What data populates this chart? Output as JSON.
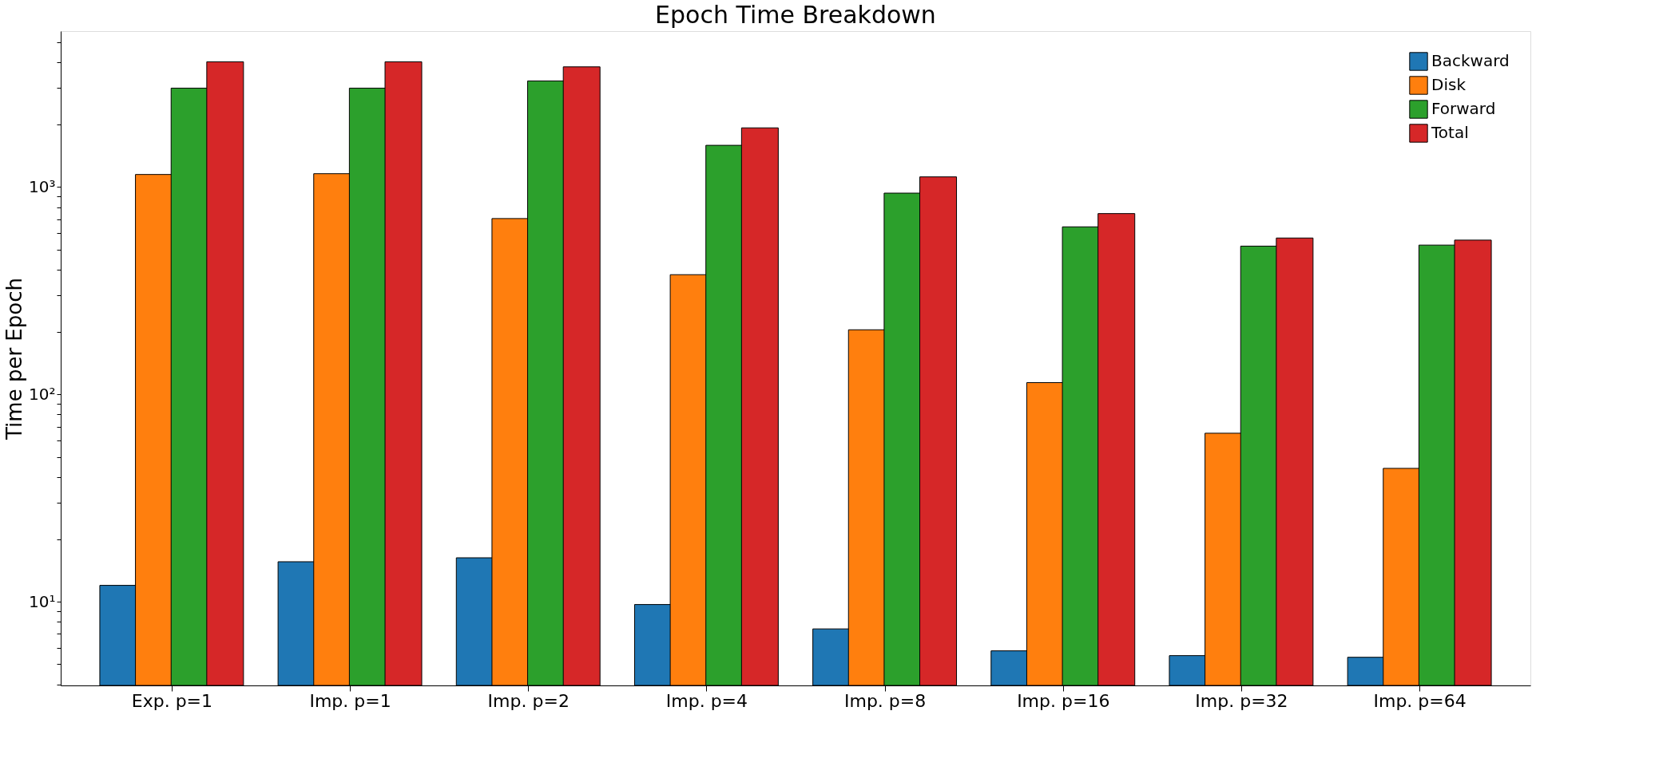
{
  "chart_data": {
    "type": "bar",
    "title": "Epoch Time Breakdown",
    "ylabel": "Time per Epoch",
    "categories": [
      "Exp. p=1",
      "Imp. p=1",
      "Imp. p=2",
      "Imp. p=4",
      "Imp. p=8",
      "Imp. p=16",
      "Imp. p=32",
      "Imp. p=64"
    ],
    "series": [
      {
        "name": "Backward",
        "color": "#1f77b4",
        "values": [
          12.0,
          15.6,
          16.3,
          9.7,
          7.4,
          5.8,
          5.5,
          5.4
        ]
      },
      {
        "name": "Disk",
        "color": "#ff7f0e",
        "values": [
          1150,
          1160,
          705,
          378,
          205,
          114,
          65,
          44
        ]
      },
      {
        "name": "Forward",
        "color": "#2ca02c",
        "values": [
          3000,
          3000,
          3250,
          1590,
          935,
          643,
          519,
          525
        ]
      },
      {
        "name": "Total",
        "color": "#d62728",
        "values": [
          4020,
          4020,
          3800,
          1930,
          1120,
          745,
          568,
          555
        ]
      }
    ],
    "log": true,
    "ylim": [
      3.95,
      5650
    ],
    "yticks": [
      {
        "value": 4,
        "label": null
      },
      {
        "value": 5,
        "label": null
      },
      {
        "value": 6,
        "label": null
      },
      {
        "value": 7,
        "label": null
      },
      {
        "value": 8,
        "label": null
      },
      {
        "value": 9,
        "label": null
      },
      {
        "value": 10,
        "label": "10¹"
      },
      {
        "value": 20,
        "label": null
      },
      {
        "value": 30,
        "label": null
      },
      {
        "value": 40,
        "label": null
      },
      {
        "value": 50,
        "label": null
      },
      {
        "value": 60,
        "label": null
      },
      {
        "value": 70,
        "label": null
      },
      {
        "value": 80,
        "label": null
      },
      {
        "value": 90,
        "label": null
      },
      {
        "value": 100,
        "label": "10²"
      },
      {
        "value": 200,
        "label": null
      },
      {
        "value": 300,
        "label": null
      },
      {
        "value": 400,
        "label": null
      },
      {
        "value": 500,
        "label": null
      },
      {
        "value": 600,
        "label": null
      },
      {
        "value": 700,
        "label": null
      },
      {
        "value": 800,
        "label": null
      },
      {
        "value": 900,
        "label": null
      },
      {
        "value": 1000,
        "label": "10³"
      },
      {
        "value": 2000,
        "label": null
      },
      {
        "value": 3000,
        "label": null
      },
      {
        "value": 4000,
        "label": null
      },
      {
        "value": 5000,
        "label": null
      }
    ],
    "grid": false,
    "legend": "top right"
  }
}
